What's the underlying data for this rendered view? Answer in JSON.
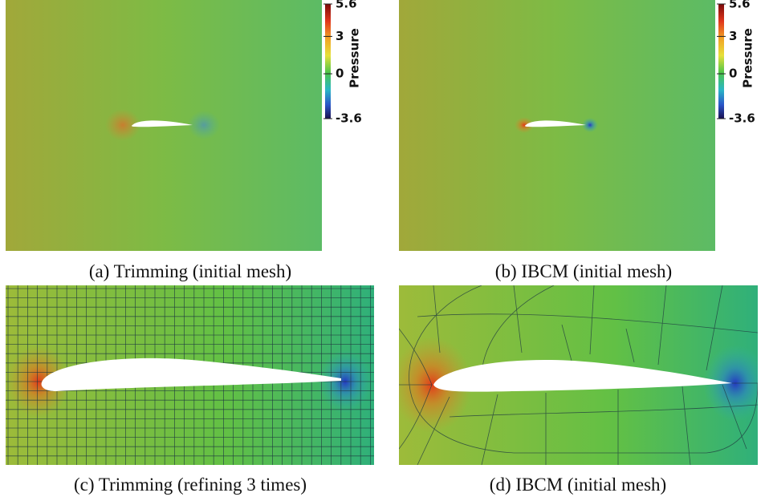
{
  "panels": [
    {
      "caption": "(a) Trimming (initial mesh)",
      "colorbar": {
        "title": "Pressure",
        "lim": [
          -3.6,
          5.6
        ],
        "ticks": [
          5.6,
          3,
          0,
          -3.6
        ]
      }
    },
    {
      "caption": "(b) IBCM (initial mesh)",
      "colorbar": {
        "title": "Pressure",
        "lim": [
          -3.6,
          5.6
        ],
        "ticks": [
          5.6,
          3,
          0,
          -3.6
        ]
      }
    },
    {
      "caption": "(c) Trimming (refining 3 times)"
    },
    {
      "caption": "(d) IBCM (initial mesh)"
    }
  ]
}
